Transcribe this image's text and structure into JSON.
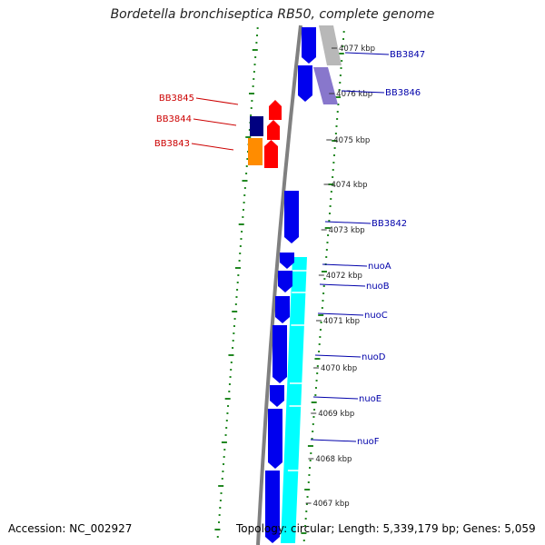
{
  "title": "Bordetella bronchiseptica RB50, complete genome",
  "footer": {
    "accession": "Accession: NC_002927",
    "topology": "Topology: circular; Length: 5,339,179 bp; Genes: 5,059"
  },
  "colors": {
    "forward_gene": "#0000ee",
    "reverse_gene": "#ff0000",
    "forward_feature": "#00ffff",
    "grey_feature": "#b8b8b8",
    "purple_feature": "#8877cc",
    "orange_feature": "#ff8c00",
    "navy_feature": "#000080",
    "backbone": "#808080",
    "tick_mark": "#228822",
    "forward_label": "#0000aa",
    "reverse_label": "#cc0000"
  },
  "ticks": [
    {
      "label": "4077 kbp"
    },
    {
      "label": "4076 kbp"
    },
    {
      "label": "4075 kbp"
    },
    {
      "label": "4074 kbp"
    },
    {
      "label": "4073 kbp"
    },
    {
      "label": "4072 kbp"
    },
    {
      "label": "4071 kbp"
    },
    {
      "label": "4070 kbp"
    },
    {
      "label": "4069 kbp"
    },
    {
      "label": "4068 kbp"
    },
    {
      "label": "4067 kbp"
    }
  ],
  "genes_forward": [
    {
      "name": "BB3847"
    },
    {
      "name": "BB3846"
    },
    {
      "name": "BB3842"
    },
    {
      "name": "nuoA"
    },
    {
      "name": "nuoB"
    },
    {
      "name": "nuoC"
    },
    {
      "name": "nuoD"
    },
    {
      "name": "nuoE"
    },
    {
      "name": "nuoF"
    }
  ],
  "genes_reverse": [
    {
      "name": "BB3845"
    },
    {
      "name": "BB3844"
    },
    {
      "name": "BB3843"
    }
  ]
}
